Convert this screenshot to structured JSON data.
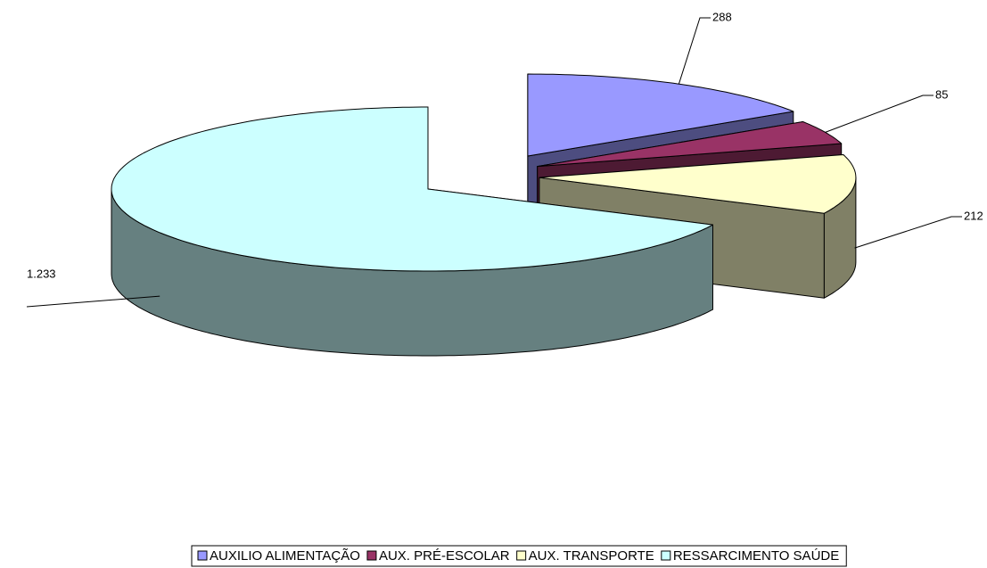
{
  "chart_data": {
    "type": "pie3d",
    "categories": [
      "AUXILIO ALIMENTAÇÃO",
      "AUX. PRÉ-ESCOLAR",
      "AUX. TRANSPORTE",
      "RESSARCIMENTO SAÚDE"
    ],
    "values": [
      288,
      85,
      212,
      1233
    ],
    "value_labels": [
      "288",
      "85",
      "212",
      "1.233"
    ],
    "colors": [
      "#9999ff",
      "#993366",
      "#ffffcc",
      "#ccffff"
    ],
    "side_colors": [
      "#4d4d80",
      "#4d1a33",
      "#808066",
      "#668080"
    ],
    "legend": "bottom"
  }
}
